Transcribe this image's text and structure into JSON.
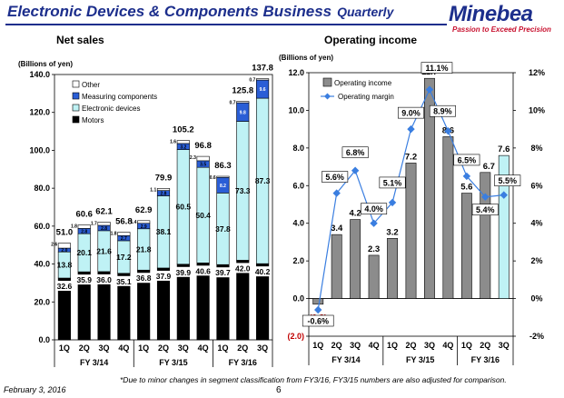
{
  "header": {
    "title": "Electronic Devices & Components Business",
    "subtitle": "Quarterly",
    "logo": "Minebea",
    "tagline": "Passion to Exceed Precision"
  },
  "footer": {
    "footnote": "*Due to minor changes in segment classification from FY3/16, FY3/15 numbers are also adjusted for comparison.",
    "date": "February 3, 2016",
    "page": "6"
  },
  "chart_data": [
    {
      "type": "bar",
      "stacked": true,
      "title": "Net sales",
      "ylabel": "(Billions of yen)",
      "ylim": [
        0,
        140
      ],
      "yticks": [
        "0.0",
        "20.0",
        "40.0",
        "60.0",
        "80.0",
        "100.0",
        "120.0",
        "140.0"
      ],
      "categories": [
        "1Q",
        "2Q",
        "3Q",
        "4Q",
        "1Q",
        "2Q",
        "3Q",
        "4Q",
        "1Q",
        "2Q",
        "3Q"
      ],
      "groups": [
        {
          "label": "FY 3/14",
          "count": 4
        },
        {
          "label": "FY 3/15",
          "count": 4
        },
        {
          "label": "FY 3/16",
          "count": 3
        }
      ],
      "legend_position": "top-left",
      "series": [
        {
          "name": "Motors",
          "color": "#000000",
          "values": [
            32.6,
            35.9,
            36.0,
            35.1,
            36.8,
            37.9,
            39.9,
            40.6,
            39.7,
            42.0,
            40.2
          ],
          "labels": [
            "32.6",
            "35.9",
            "36.0",
            "35.1",
            "36.8",
            "37.9",
            "39.9",
            "40.6",
            "39.7",
            "42.0",
            "40.2"
          ]
        },
        {
          "name": "Electronic devices",
          "color": "#bff2f5",
          "values": [
            13.8,
            20.1,
            21.6,
            17.2,
            21.8,
            38.1,
            60.5,
            50.4,
            37.8,
            73.3,
            87.3
          ],
          "labels": [
            "13.8",
            "20.1",
            "21.6",
            "17.2",
            "21.8",
            "38.1",
            "60.5",
            "50.4",
            "37.8",
            "73.3",
            "87.3"
          ]
        },
        {
          "name": "Measuring components",
          "color": "#2a5ed6",
          "values": [
            2.0,
            2.8,
            2.8,
            2.7,
            2.9,
            2.8,
            3.2,
            3.5,
            8.2,
            9.8,
            9.6
          ],
          "labels": [
            "2.0",
            "2.8",
            "2.8",
            "2.7",
            "2.9",
            "2.8",
            "3.2",
            "3.5",
            "8.2",
            "9.8",
            "9.6"
          ]
        },
        {
          "name": "Other",
          "color": "#ffffff",
          "values": [
            2.6,
            1.8,
            1.7,
            1.8,
            1.4,
            1.1,
            1.6,
            2.3,
            0.6,
            0.7,
            0.7
          ],
          "labels": [
            "2.6",
            "1.8",
            "1.7",
            "1.8",
            "1.4",
            "1.1",
            "1.6",
            "2.3",
            "0.6",
            "0.7",
            "0.7"
          ]
        }
      ],
      "totals": [
        51.0,
        60.6,
        62.1,
        56.8,
        62.9,
        79.9,
        105.2,
        96.8,
        86.3,
        125.8,
        137.8
      ],
      "total_labels": [
        "51.0",
        "60.6",
        "62.1",
        "56.8",
        "62.9",
        "79.9",
        "105.2",
        "96.8",
        "86.3",
        "125.8",
        "137.8"
      ]
    },
    {
      "type": "bar+line",
      "title": "Operating income",
      "ylabel": "(Billions of yen)",
      "ylim": [
        -2,
        12
      ],
      "yticks": [
        "(2.0)",
        "0.0",
        "2.0",
        "4.0",
        "6.0",
        "8.0",
        "10.0",
        "12.0"
      ],
      "y2lim": [
        -2,
        12
      ],
      "y2ticks": [
        "-2%",
        "0%",
        "2%",
        "4%",
        "6%",
        "8%",
        "10%",
        "12%"
      ],
      "categories": [
        "1Q",
        "2Q",
        "3Q",
        "4Q",
        "1Q",
        "2Q",
        "3Q",
        "4Q",
        "1Q",
        "2Q",
        "3Q"
      ],
      "groups": [
        {
          "label": "FY 3/14",
          "count": 4
        },
        {
          "label": "FY 3/15",
          "count": 4
        },
        {
          "label": "FY 3/16",
          "count": 3
        }
      ],
      "legend_position": "top-left",
      "income": {
        "name": "Operating income",
        "color": "#8c8c8c",
        "last_color": "#bff2f5",
        "values": [
          -0.3,
          3.4,
          4.2,
          2.3,
          3.2,
          7.2,
          11.7,
          8.6,
          5.6,
          6.7,
          7.6
        ],
        "labels": [
          "(0.3)",
          "3.4",
          "4.2",
          "2.3",
          "3.2",
          "7.2",
          "11.7",
          "8.6",
          "5.6",
          "6.7",
          "7.6"
        ]
      },
      "margin": {
        "name": "Operating margin",
        "color": "#3a7ee0",
        "values": [
          -0.6,
          5.6,
          6.8,
          4.0,
          5.1,
          9.0,
          11.1,
          8.9,
          6.5,
          5.4,
          5.5
        ],
        "labels": [
          "-0.6%",
          "5.6%",
          "6.8%",
          "4.0%",
          "5.1%",
          "9.0%",
          "11.1%",
          "8.9%",
          "6.5%",
          "5.4%",
          "5.5%"
        ]
      }
    }
  ]
}
